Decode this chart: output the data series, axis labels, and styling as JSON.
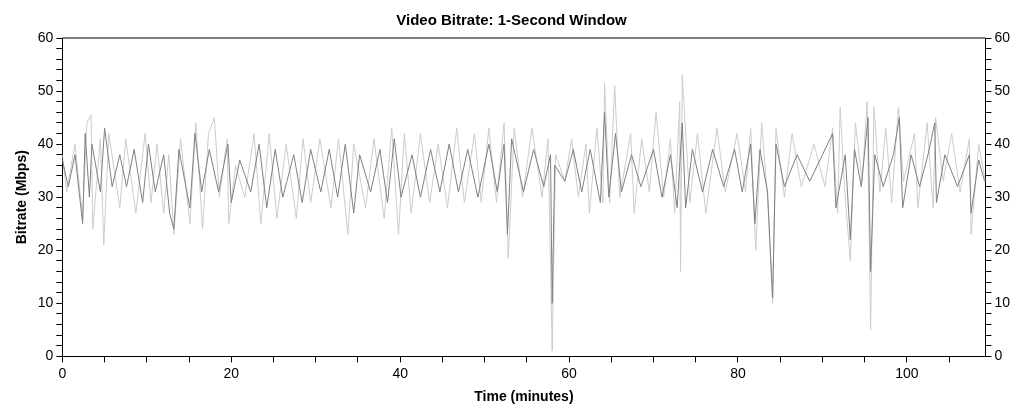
{
  "chart_data": {
    "type": "line",
    "title": "Video Bitrate: 1-Second Window",
    "xlabel": "Time (minutes)",
    "ylabel": "Bitrate (Mbps)",
    "xlim": [
      0,
      109.3
    ],
    "xticks": [
      0,
      {
        "value": 5,
        "label": null
      },
      {
        "value": 10,
        "label": null
      },
      {
        "value": 15,
        "label": null
      },
      20,
      {
        "value": 25,
        "label": null
      },
      {
        "value": 30,
        "label": null
      },
      {
        "value": 35,
        "label": null
      },
      40,
      {
        "value": 45,
        "label": null
      },
      {
        "value": 50,
        "label": null
      },
      {
        "value": 55,
        "label": null
      },
      60,
      {
        "value": 65,
        "label": null
      },
      {
        "value": 70,
        "label": null
      },
      {
        "value": 75,
        "label": null
      },
      80,
      {
        "value": 85,
        "label": null
      },
      {
        "value": 90,
        "label": null
      },
      {
        "value": 95,
        "label": null
      },
      100,
      {
        "value": 105,
        "label": null
      }
    ],
    "ylim": [
      0,
      60
    ],
    "yticks": [
      0,
      {
        "value": 2,
        "label": null
      },
      {
        "value": 4,
        "label": null
      },
      {
        "value": 6,
        "label": null
      },
      {
        "value": 8,
        "label": null
      },
      10,
      {
        "value": 12,
        "label": null
      },
      {
        "value": 14,
        "label": null
      },
      {
        "value": 16,
        "label": null
      },
      {
        "value": 18,
        "label": null
      },
      20,
      {
        "value": 22,
        "label": null
      },
      {
        "value": 24,
        "label": null
      },
      {
        "value": 26,
        "label": null
      },
      {
        "value": 28,
        "label": null
      },
      30,
      {
        "value": 32,
        "label": null
      },
      {
        "value": 34,
        "label": null
      },
      {
        "value": 36,
        "label": null
      },
      {
        "value": 38,
        "label": null
      },
      40,
      {
        "value": 42,
        "label": null
      },
      {
        "value": 44,
        "label": null
      },
      {
        "value": 46,
        "label": null
      },
      {
        "value": 48,
        "label": null
      },
      50,
      {
        "value": 52,
        "label": null
      },
      {
        "value": 54,
        "label": null
      },
      {
        "value": 56,
        "label": null
      },
      {
        "value": 58,
        "label": null
      },
      60
    ],
    "y2lim": [
      0,
      60
    ],
    "y2ticks": [
      0,
      {
        "value": 2,
        "label": null
      },
      {
        "value": 4,
        "label": null
      },
      {
        "value": 6,
        "label": null
      },
      {
        "value": 8,
        "label": null
      },
      10,
      {
        "value": 12,
        "label": null
      },
      {
        "value": 14,
        "label": null
      },
      {
        "value": 16,
        "label": null
      },
      {
        "value": 18,
        "label": null
      },
      20,
      {
        "value": 22,
        "label": null
      },
      {
        "value": 24,
        "label": null
      },
      {
        "value": 26,
        "label": null
      },
      {
        "value": 28,
        "label": null
      },
      30,
      {
        "value": 32,
        "label": null
      },
      {
        "value": 34,
        "label": null
      },
      {
        "value": 36,
        "label": null
      },
      {
        "value": 38,
        "label": null
      },
      40,
      {
        "value": 42,
        "label": null
      },
      {
        "value": 44,
        "label": null
      },
      {
        "value": 46,
        "label": null
      },
      {
        "value": 48,
        "label": null
      },
      50,
      {
        "value": 52,
        "label": null
      },
      {
        "value": 54,
        "label": null
      },
      {
        "value": 56,
        "label": null
      },
      {
        "value": 58,
        "label": null
      },
      60
    ],
    "series": [
      {
        "color": "#cccccc",
        "x": [
          0,
          0.5,
          1.5,
          2.4,
          2.9,
          3.4,
          3.6,
          4.5,
          4.9,
          5.5,
          6.8,
          7.5,
          8.7,
          9.8,
          10.5,
          11.2,
          12,
          12.6,
          13.2,
          14,
          15.1,
          15.8,
          16.6,
          17.3,
          18,
          18.6,
          19.5,
          19.7,
          20.5,
          21.6,
          22.7,
          23.5,
          24.5,
          25.4,
          26.5,
          27.7,
          28.5,
          29.4,
          30.5,
          31.8,
          32.7,
          33.8,
          34.5,
          35.9,
          36.9,
          38.1,
          39,
          39.8,
          40.5,
          41.3,
          42.4,
          43.5,
          44.5,
          45.6,
          46.7,
          47.6,
          48.8,
          49.6,
          50.5,
          51.4,
          52.3,
          52.8,
          53.5,
          54.5,
          55.6,
          56.8,
          57.5,
          58,
          58.4,
          59.5,
          60.3,
          61.1,
          62,
          62.4,
          63.3,
          64,
          64.2,
          64.8,
          65.4,
          66,
          67.3,
          67.7,
          68.6,
          69.5,
          70.3,
          71.2,
          72,
          72.5,
          73.1,
          73.2,
          73.4,
          74.3,
          75.2,
          76.2,
          77.5,
          78.5,
          79.9,
          80.9,
          81.5,
          82.1,
          82.8,
          83.5,
          84.1,
          84.5,
          85.5,
          86.4,
          87.5,
          89,
          90.3,
          91.2,
          91.8,
          92.1,
          92.6,
          93.3,
          93.9,
          94.7,
          95.3,
          95.7,
          96.1,
          96.8,
          97.5,
          98.2,
          99,
          99.6,
          100.9,
          101.3,
          102.4,
          103.1,
          103.4,
          104.3,
          105.3,
          106.3,
          107.4,
          107.6,
          108.5,
          109.3
        ],
        "values": [
          38,
          31,
          40,
          26,
          44,
          45.5,
          24,
          41,
          21,
          42,
          28,
          41,
          27,
          42,
          29,
          40,
          27,
          38,
          23,
          41,
          25,
          44,
          24,
          42,
          45,
          30,
          41,
          25,
          36,
          30,
          42,
          25,
          42,
          26,
          40,
          26,
          41,
          29,
          41,
          28,
          41,
          23,
          40,
          28,
          41,
          26,
          43,
          23,
          42,
          27,
          42,
          29,
          40,
          28,
          43,
          29,
          42,
          29,
          43,
          29,
          44,
          18.5,
          43,
          30,
          43,
          30,
          41,
          1,
          38,
          33,
          41,
          30,
          40,
          27,
          43,
          29,
          51.5,
          29,
          51,
          30,
          42,
          27,
          41,
          31,
          46,
          30,
          41,
          27,
          48,
          16,
          53,
          29,
          42,
          27,
          43,
          31,
          42,
          31,
          43,
          20,
          44,
          30,
          10,
          43,
          30,
          42,
          32,
          40,
          32,
          43,
          27,
          47,
          32,
          18,
          44,
          33,
          48,
          5,
          47,
          31,
          43,
          29,
          47,
          33,
          42,
          28,
          44,
          28,
          45,
          33,
          42,
          31,
          41,
          23,
          40,
          33
        ]
      },
      {
        "color": "#808080",
        "x": [
          0,
          0.7,
          1.5,
          2.4,
          2.7,
          3.2,
          3.5,
          4.5,
          5,
          5.9,
          6.8,
          7.6,
          8.5,
          9.5,
          10.2,
          11,
          12,
          12.7,
          13.2,
          13.8,
          15.1,
          15.7,
          16.5,
          17.4,
          18.5,
          19.6,
          20,
          21,
          22.3,
          23.3,
          24.2,
          25.2,
          26.1,
          27.4,
          28.4,
          29.4,
          30.6,
          31.6,
          32.6,
          33.5,
          34.5,
          35.2,
          36.5,
          37.6,
          38.5,
          39.3,
          40.1,
          41.4,
          42.4,
          43.6,
          44.7,
          45.8,
          46.9,
          48,
          49.2,
          50.5,
          51.5,
          52.3,
          52.7,
          53.2,
          54.6,
          55.8,
          57,
          57.8,
          58,
          58.3,
          59.5,
          60.5,
          61.5,
          62.5,
          63.7,
          64.2,
          64.7,
          65.5,
          66.2,
          67.4,
          68.5,
          70,
          71,
          72,
          72.8,
          73.4,
          73.8,
          74.6,
          75.8,
          77,
          78.3,
          79.6,
          80.5,
          81.5,
          82,
          82.6,
          83.5,
          84.1,
          84.5,
          85.5,
          87,
          88.5,
          90,
          91.2,
          91.6,
          92.7,
          93.3,
          93.8,
          94.6,
          95.4,
          95.7,
          96.2,
          97.2,
          98.4,
          99.1,
          99.5,
          100.5,
          101.5,
          102.5,
          103.3,
          103.5,
          104.5,
          106,
          107.4,
          107.6,
          108.5,
          109.2
        ],
        "values": [
          37,
          32,
          38,
          25,
          42,
          30,
          40,
          31,
          43,
          32,
          38,
          32,
          39,
          29,
          40,
          31,
          38,
          27,
          24,
          39,
          28,
          42,
          31,
          39,
          31,
          40,
          29,
          37,
          31,
          40,
          28,
          39,
          30,
          38,
          29,
          39,
          31,
          39,
          30,
          40,
          27,
          38,
          31,
          39,
          29,
          41,
          30,
          38,
          30,
          39,
          31,
          40,
          31,
          39,
          30,
          40,
          31,
          40,
          23,
          41,
          31,
          39,
          32,
          38,
          10,
          36,
          33,
          39,
          31,
          39,
          29,
          46,
          30,
          42,
          31,
          38,
          32,
          39,
          30,
          38,
          28,
          44,
          28,
          39,
          31,
          39,
          32,
          39,
          31,
          40,
          25,
          39,
          31,
          11,
          40,
          32,
          38,
          33,
          38,
          42,
          28,
          38,
          22,
          39,
          32,
          45,
          16,
          38,
          32,
          38,
          45,
          28,
          38,
          32,
          38,
          44,
          29,
          38,
          32,
          38,
          27,
          37,
          33
        ]
      }
    ]
  }
}
